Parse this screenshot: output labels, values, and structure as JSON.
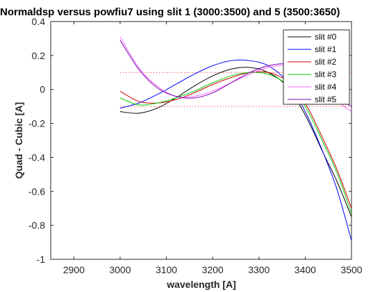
{
  "chart_data": {
    "type": "line",
    "title": "Normaldsp versus powfiu7 using slit 1 (3000:3500) and 5 (3500:3650)",
    "xlabel": "wavelength [A]",
    "ylabel": "Quad - Cubic  [A]",
    "xlim": [
      2850,
      3500
    ],
    "ylim": [
      -1,
      0.4
    ],
    "xticks": [
      2900,
      3000,
      3100,
      3200,
      3300,
      3400,
      3500
    ],
    "yticks": [
      -1,
      -0.8,
      -0.6,
      -0.4,
      -0.2,
      0,
      0.2,
      0.4
    ],
    "grid": false,
    "legend_position": "top-right",
    "reference_lines": [
      {
        "y": 0.1,
        "x_range": [
          3000,
          3500
        ],
        "style": "dotted",
        "color": "#ff0000"
      },
      {
        "y": -0.1,
        "x_range": [
          3000,
          3500
        ],
        "style": "dotted",
        "color": "#ff0000"
      }
    ],
    "series": [
      {
        "name": "slit #0",
        "color": "#000000",
        "x": [
          3000,
          3040,
          3080,
          3120,
          3160,
          3200,
          3240,
          3280,
          3320,
          3360,
          3400,
          3440,
          3470,
          3500
        ],
        "y": [
          -0.13,
          -0.14,
          -0.11,
          -0.05,
          0.02,
          0.08,
          0.12,
          0.13,
          0.1,
          0.02,
          -0.15,
          -0.38,
          -0.55,
          -0.75
        ]
      },
      {
        "name": "slit #1",
        "color": "#0000ff",
        "x": [
          3000,
          3040,
          3080,
          3120,
          3160,
          3200,
          3240,
          3280,
          3320,
          3360,
          3400,
          3440,
          3470,
          3500
        ],
        "y": [
          -0.11,
          -0.08,
          -0.03,
          0.03,
          0.09,
          0.14,
          0.17,
          0.17,
          0.14,
          0.05,
          -0.13,
          -0.38,
          -0.6,
          -0.89
        ]
      },
      {
        "name": "slit #2",
        "color": "#cc0000",
        "x": [
          3000,
          3040,
          3080,
          3120,
          3160,
          3200,
          3240,
          3280,
          3320,
          3360,
          3400,
          3440,
          3470,
          3500
        ],
        "y": [
          -0.01,
          -0.07,
          -0.08,
          -0.06,
          -0.02,
          0.03,
          0.07,
          0.1,
          0.1,
          0.05,
          -0.08,
          -0.3,
          -0.48,
          -0.7
        ]
      },
      {
        "name": "slit #3",
        "color": "#00cc00",
        "x": [
          3000,
          3040,
          3080,
          3120,
          3160,
          3200,
          3240,
          3280,
          3320,
          3360,
          3400,
          3440,
          3470,
          3500
        ],
        "y": [
          -0.05,
          -0.09,
          -0.08,
          -0.05,
          -0.01,
          0.04,
          0.08,
          0.1,
          0.09,
          0.03,
          -0.1,
          -0.32,
          -0.5,
          -0.73
        ]
      },
      {
        "name": "slit #4",
        "color": "#ff66ff",
        "x": [
          3000,
          3040,
          3080,
          3120,
          3160,
          3200,
          3240,
          3280,
          3320,
          3360,
          3400,
          3440,
          3470,
          3500
        ],
        "y": [
          0.31,
          0.13,
          0.02,
          -0.04,
          -0.04,
          -0.01,
          0.04,
          0.09,
          0.13,
          0.14,
          0.1,
          0.0,
          -0.07,
          -0.13
        ]
      },
      {
        "name": "slit #5",
        "color": "#7a00b3",
        "x": [
          3000,
          3040,
          3080,
          3120,
          3160,
          3200,
          3240,
          3280,
          3320,
          3360,
          3400,
          3440,
          3470,
          3500
        ],
        "y": [
          0.29,
          0.12,
          0.01,
          -0.04,
          -0.05,
          -0.02,
          0.04,
          0.1,
          0.14,
          0.15,
          0.11,
          0.02,
          -0.05,
          -0.1
        ]
      }
    ]
  }
}
